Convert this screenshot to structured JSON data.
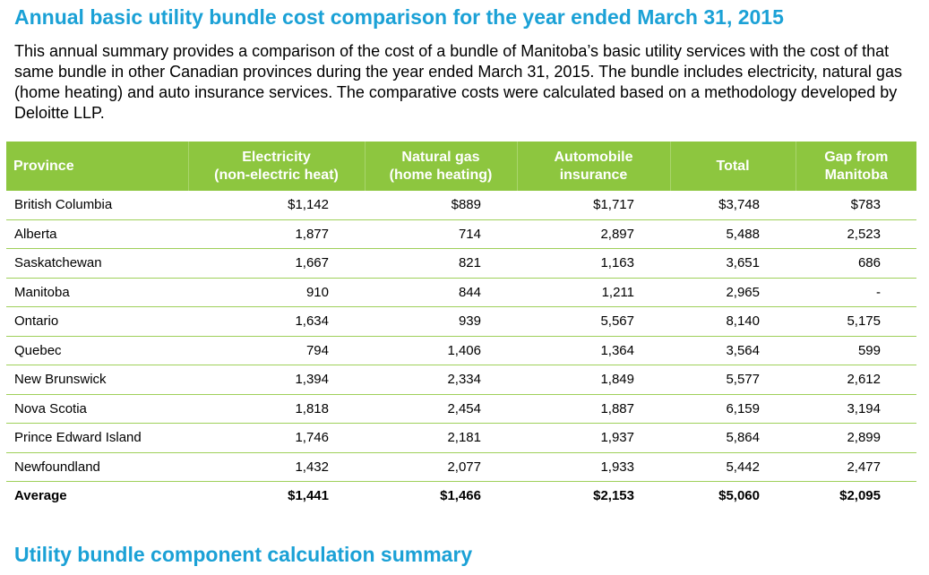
{
  "title": "Annual basic utility bundle cost comparison for the year ended March 31, 2015",
  "intro": "This annual summary provides a comparison of the cost of a bundle of Manitoba’s basic utility services with the cost of that same bundle in other Canadian provinces during the year ended March 31, 2015. The bundle includes electricity, natural gas (home heating) and auto insurance services. The comparative costs were calculated based on a methodology developed by Deloitte LLP.",
  "table": {
    "header": {
      "province": "Province",
      "electricity_line1": "Electricity",
      "electricity_line2": "(non-electric heat)",
      "gas_line1": "Natural gas",
      "gas_line2": "(home heating)",
      "auto_line1": "Automobile",
      "auto_line2": "insurance",
      "total": "Total",
      "gap_line1": "Gap from",
      "gap_line2": "Manitoba"
    },
    "rows": [
      {
        "province": "British Columbia",
        "electricity": "$1,142",
        "gas": "$889",
        "auto": "$1,717",
        "total": "$3,748",
        "gap": "$783"
      },
      {
        "province": "Alberta",
        "electricity": "1,877",
        "gas": "714",
        "auto": "2,897",
        "total": "5,488",
        "gap": "2,523"
      },
      {
        "province": "Saskatchewan",
        "electricity": "1,667",
        "gas": "821",
        "auto": "1,163",
        "total": "3,651",
        "gap": "686"
      },
      {
        "province": "Manitoba",
        "electricity": "910",
        "gas": "844",
        "auto": "1,211",
        "total": "2,965",
        "gap": "-"
      },
      {
        "province": "Ontario",
        "electricity": "1,634",
        "gas": "939",
        "auto": "5,567",
        "total": "8,140",
        "gap": "5,175"
      },
      {
        "province": "Quebec",
        "electricity": "794",
        "gas": "1,406",
        "auto": "1,364",
        "total": "3,564",
        "gap": "599"
      },
      {
        "province": "New Brunswick",
        "electricity": "1,394",
        "gas": "2,334",
        "auto": "1,849",
        "total": "5,577",
        "gap": "2,612"
      },
      {
        "province": "Nova Scotia",
        "electricity": "1,818",
        "gas": "2,454",
        "auto": "1,887",
        "total": "6,159",
        "gap": "3,194"
      },
      {
        "province": "Prince Edward Island",
        "electricity": "1,746",
        "gas": "2,181",
        "auto": "1,937",
        "total": "5,864",
        "gap": "2,899"
      },
      {
        "province": "Newfoundland",
        "electricity": "1,432",
        "gas": "2,077",
        "auto": "1,933",
        "total": "5,442",
        "gap": "2,477"
      }
    ],
    "average": {
      "province": "Average",
      "electricity": "$1,441",
      "gas": "$1,466",
      "auto": "$2,153",
      "total": "$5,060",
      "gap": "$2,095"
    }
  },
  "subtitle": "Utility bundle component calculation summary",
  "colors": {
    "heading_blue": "#1ba1d6",
    "header_green": "#8dc63f",
    "rule_green": "#9fd05a"
  }
}
